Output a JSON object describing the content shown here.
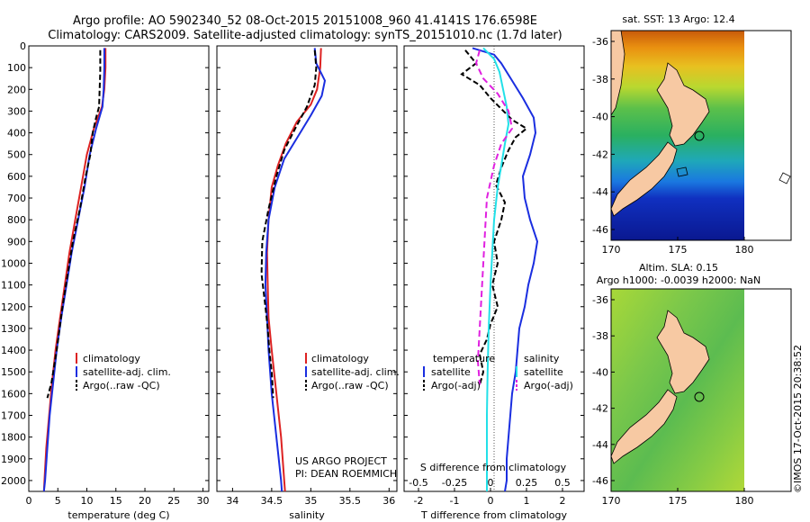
{
  "header": {
    "title_line1": "Argo profile: AO 5902340_52 08-Oct-2015 20151008_960 41.4141S 176.6598E",
    "title_line2": "Climatology: CARS2009. Satellite-adjusted climatology: synTS_20151010.nc (1.7d later)"
  },
  "colors": {
    "climatology": "#dd2222",
    "satellite": "#1a2ee0",
    "argo": "#000000",
    "salinity_sat": "#22e0e8",
    "salinity_argo": "#e020e0",
    "land": "#f7c9a3"
  },
  "chart_data": [
    {
      "type": "line",
      "panel": "temperature",
      "xlabel": "temperature (deg C)",
      "xlim": [
        0,
        31
      ],
      "xticks": [
        "0",
        "5",
        "10",
        "15",
        "20",
        "25",
        "30"
      ],
      "ylim": [
        0,
        2050
      ],
      "yticks": [
        "0",
        "100",
        "200",
        "300",
        "400",
        "500",
        "600",
        "700",
        "800",
        "900",
        "1000",
        "1100",
        "1200",
        "1300",
        "1400",
        "1500",
        "1600",
        "1700",
        "1800",
        "1900",
        "2000"
      ],
      "legend": [
        "climatology",
        "satellite-adj. clim.",
        "Argo(..raw -QC)"
      ],
      "series": [
        {
          "name": "climatology",
          "color": "#dd2222",
          "dash": "",
          "points": [
            [
              13.2,
              10
            ],
            [
              13.2,
              100
            ],
            [
              13.0,
              200
            ],
            [
              12.6,
              280
            ],
            [
              11.2,
              380
            ],
            [
              10.0,
              500
            ],
            [
              9.0,
              650
            ],
            [
              8.0,
              800
            ],
            [
              7.0,
              950
            ],
            [
              6.2,
              1100
            ],
            [
              5.4,
              1250
            ],
            [
              4.6,
              1400
            ],
            [
              4.0,
              1550
            ],
            [
              3.5,
              1700
            ],
            [
              3.0,
              1850
            ],
            [
              2.7,
              2000
            ],
            [
              2.6,
              2050
            ]
          ]
        },
        {
          "name": "satellite-adj. clim.",
          "color": "#1a2ee0",
          "dash": "",
          "points": [
            [
              13.0,
              10
            ],
            [
              13.0,
              100
            ],
            [
              12.9,
              200
            ],
            [
              12.7,
              280
            ],
            [
              11.6,
              380
            ],
            [
              10.5,
              500
            ],
            [
              9.6,
              650
            ],
            [
              8.5,
              800
            ],
            [
              7.4,
              950
            ],
            [
              6.5,
              1100
            ],
            [
              5.6,
              1250
            ],
            [
              4.8,
              1400
            ],
            [
              4.2,
              1550
            ],
            [
              3.6,
              1700
            ],
            [
              3.2,
              1850
            ],
            [
              2.8,
              2000
            ],
            [
              2.6,
              2050
            ]
          ]
        },
        {
          "name": "Argo(..raw -QC)",
          "color": "#000000",
          "dash": "6,3",
          "points": [
            [
              12.3,
              20
            ],
            [
              12.3,
              120
            ],
            [
              12.2,
              200
            ],
            [
              12.1,
              280
            ],
            [
              11.6,
              330
            ],
            [
              11.0,
              400
            ],
            [
              10.6,
              500
            ],
            [
              9.8,
              600
            ],
            [
              8.8,
              750
            ],
            [
              7.6,
              900
            ],
            [
              6.7,
              1050
            ],
            [
              5.8,
              1200
            ],
            [
              4.8,
              1400
            ],
            [
              3.9,
              1550
            ],
            [
              3.2,
              1620
            ]
          ]
        }
      ]
    },
    {
      "type": "line",
      "panel": "salinity",
      "xlabel": "salinity",
      "xlim": [
        33.8,
        36.1
      ],
      "xticks": [
        "34",
        "34.5",
        "35",
        "35.5",
        "36"
      ],
      "ylim": [
        0,
        2050
      ],
      "legend": [
        "climatology",
        "satellite-adj. clim.",
        "Argo(..raw -QC)"
      ],
      "annotation": [
        "US ARGO PROJECT",
        "PI: DEAN ROEMMICH"
      ],
      "series": [
        {
          "name": "climatology",
          "color": "#dd2222",
          "dash": "",
          "points": [
            [
              35.13,
              10
            ],
            [
              35.12,
              100
            ],
            [
              35.08,
              200
            ],
            [
              35.0,
              270
            ],
            [
              34.82,
              350
            ],
            [
              34.68,
              450
            ],
            [
              34.58,
              550
            ],
            [
              34.5,
              650
            ],
            [
              34.46,
              800
            ],
            [
              34.44,
              950
            ],
            [
              34.45,
              1100
            ],
            [
              34.46,
              1250
            ],
            [
              34.5,
              1400
            ],
            [
              34.56,
              1600
            ],
            [
              34.62,
              1800
            ],
            [
              34.66,
              2000
            ],
            [
              34.67,
              2050
            ]
          ]
        },
        {
          "name": "satellite-adj. clim.",
          "color": "#1a2ee0",
          "dash": "",
          "points": [
            [
              35.05,
              10
            ],
            [
              35.07,
              80
            ],
            [
              35.18,
              160
            ],
            [
              35.14,
              230
            ],
            [
              35.0,
              320
            ],
            [
              34.83,
              420
            ],
            [
              34.66,
              520
            ],
            [
              34.54,
              650
            ],
            [
              34.46,
              800
            ],
            [
              34.43,
              950
            ],
            [
              34.42,
              1100
            ],
            [
              34.44,
              1250
            ],
            [
              34.46,
              1400
            ],
            [
              34.5,
              1600
            ],
            [
              34.56,
              1800
            ],
            [
              34.62,
              2000
            ],
            [
              34.63,
              2050
            ]
          ]
        },
        {
          "name": "Argo(..raw -QC)",
          "color": "#000000",
          "dash": "6,3",
          "points": [
            [
              35.05,
              20
            ],
            [
              35.07,
              100
            ],
            [
              35.05,
              180
            ],
            [
              34.95,
              280
            ],
            [
              34.8,
              380
            ],
            [
              34.66,
              480
            ],
            [
              34.56,
              600
            ],
            [
              34.46,
              750
            ],
            [
              34.38,
              900
            ],
            [
              34.37,
              1050
            ],
            [
              34.42,
              1200
            ],
            [
              34.45,
              1300
            ],
            [
              34.47,
              1400
            ],
            [
              34.5,
              1500
            ],
            [
              34.52,
              1620
            ]
          ]
        }
      ]
    },
    {
      "type": "line",
      "panel": "differences",
      "xlabel": "T difference from climatology",
      "xlabel_top": "S difference from climatology",
      "xlim": [
        -2.4,
        2.6
      ],
      "xticks": [
        "-2",
        "-1",
        "0",
        "1",
        "2"
      ],
      "xticks_top": [
        "-0.5",
        "-0.25",
        "0",
        "0.25",
        "0.5"
      ],
      "ylim": [
        0,
        2050
      ],
      "legend_temperature": {
        "heading": "temperature",
        "items": [
          "satellite",
          "Argo(-adj)"
        ]
      },
      "legend_salinity": {
        "heading": "salinity",
        "items": [
          "satellite",
          "Argo(-adj)"
        ]
      },
      "series": [
        {
          "name": "T satellite",
          "color": "#1a2ee0",
          "dash": "",
          "points": [
            [
              -0.5,
              10
            ],
            [
              0.1,
              40
            ],
            [
              0.3,
              80
            ],
            [
              0.6,
              160
            ],
            [
              0.9,
              240
            ],
            [
              1.2,
              330
            ],
            [
              1.25,
              400
            ],
            [
              1.1,
              500
            ],
            [
              0.9,
              600
            ],
            [
              0.95,
              700
            ],
            [
              1.1,
              800
            ],
            [
              1.3,
              900
            ],
            [
              1.2,
              1000
            ],
            [
              1.05,
              1100
            ],
            [
              0.95,
              1200
            ],
            [
              0.8,
              1300
            ],
            [
              0.75,
              1400
            ],
            [
              0.7,
              1500
            ],
            [
              0.6,
              1600
            ],
            [
              0.55,
              1700
            ],
            [
              0.5,
              1800
            ],
            [
              0.45,
              1900
            ],
            [
              0.45,
              2000
            ],
            [
              0.4,
              2050
            ]
          ]
        },
        {
          "name": "T Argo(-adj)",
          "color": "#000000",
          "dash": "6,3",
          "points": [
            [
              -0.7,
              20
            ],
            [
              -0.4,
              80
            ],
            [
              -0.8,
              130
            ],
            [
              -0.3,
              180
            ],
            [
              0.0,
              240
            ],
            [
              0.3,
              290
            ],
            [
              0.6,
              340
            ],
            [
              1.0,
              380
            ],
            [
              0.7,
              420
            ],
            [
              0.5,
              480
            ],
            [
              0.3,
              560
            ],
            [
              0.15,
              640
            ],
            [
              0.4,
              720
            ],
            [
              0.3,
              800
            ],
            [
              0.1,
              900
            ],
            [
              0.2,
              1000
            ],
            [
              0.05,
              1100
            ],
            [
              0.2,
              1200
            ],
            [
              0.0,
              1280
            ],
            [
              -0.1,
              1350
            ],
            [
              -0.3,
              1420
            ],
            [
              -0.2,
              1500
            ],
            [
              -0.3,
              1560
            ]
          ]
        },
        {
          "name": "S satellite",
          "color": "#22e0e8",
          "dash": "",
          "points": [
            [
              -0.2,
              10
            ],
            [
              0.1,
              60
            ],
            [
              0.25,
              120
            ],
            [
              0.35,
              200
            ],
            [
              0.45,
              280
            ],
            [
              0.5,
              360
            ],
            [
              0.4,
              450
            ],
            [
              0.3,
              550
            ],
            [
              0.2,
              650
            ],
            [
              0.1,
              800
            ],
            [
              0.05,
              950
            ],
            [
              0.0,
              1100
            ],
            [
              -0.05,
              1300
            ],
            [
              -0.08,
              1500
            ],
            [
              -0.1,
              1700
            ],
            [
              -0.1,
              1900
            ],
            [
              -0.1,
              2050
            ]
          ]
        },
        {
          "name": "S Argo(-adj)",
          "color": "#e020e0",
          "dash": "7,4",
          "points": [
            [
              -0.3,
              20
            ],
            [
              -0.4,
              80
            ],
            [
              -0.2,
              150
            ],
            [
              0.2,
              220
            ],
            [
              0.5,
              300
            ],
            [
              0.6,
              380
            ],
            [
              0.3,
              450
            ],
            [
              0.1,
              550
            ],
            [
              -0.1,
              700
            ],
            [
              -0.15,
              850
            ],
            [
              -0.2,
              1000
            ],
            [
              -0.25,
              1150
            ],
            [
              -0.3,
              1300
            ],
            [
              -0.35,
              1450
            ],
            [
              -0.3,
              1560
            ]
          ]
        }
      ]
    }
  ],
  "maps": {
    "sst": {
      "title": "sat. SST: 13 Argo: 12.4",
      "xticks": [
        "170",
        "175",
        "180"
      ],
      "yticks": [
        "-36",
        "-38",
        "-40",
        "-42",
        "-44",
        "-46"
      ]
    },
    "sla": {
      "title_line1": "Altim. SLA: 0.15",
      "title_line2": "Argo h1000: -0.0039 h2000: NaN",
      "xticks": [
        "170",
        "175",
        "180"
      ],
      "yticks": [
        "-36",
        "-38",
        "-40",
        "-42",
        "-44",
        "-46"
      ]
    },
    "credit": "©IMOS 17-Oct-2015 20:38:52"
  }
}
